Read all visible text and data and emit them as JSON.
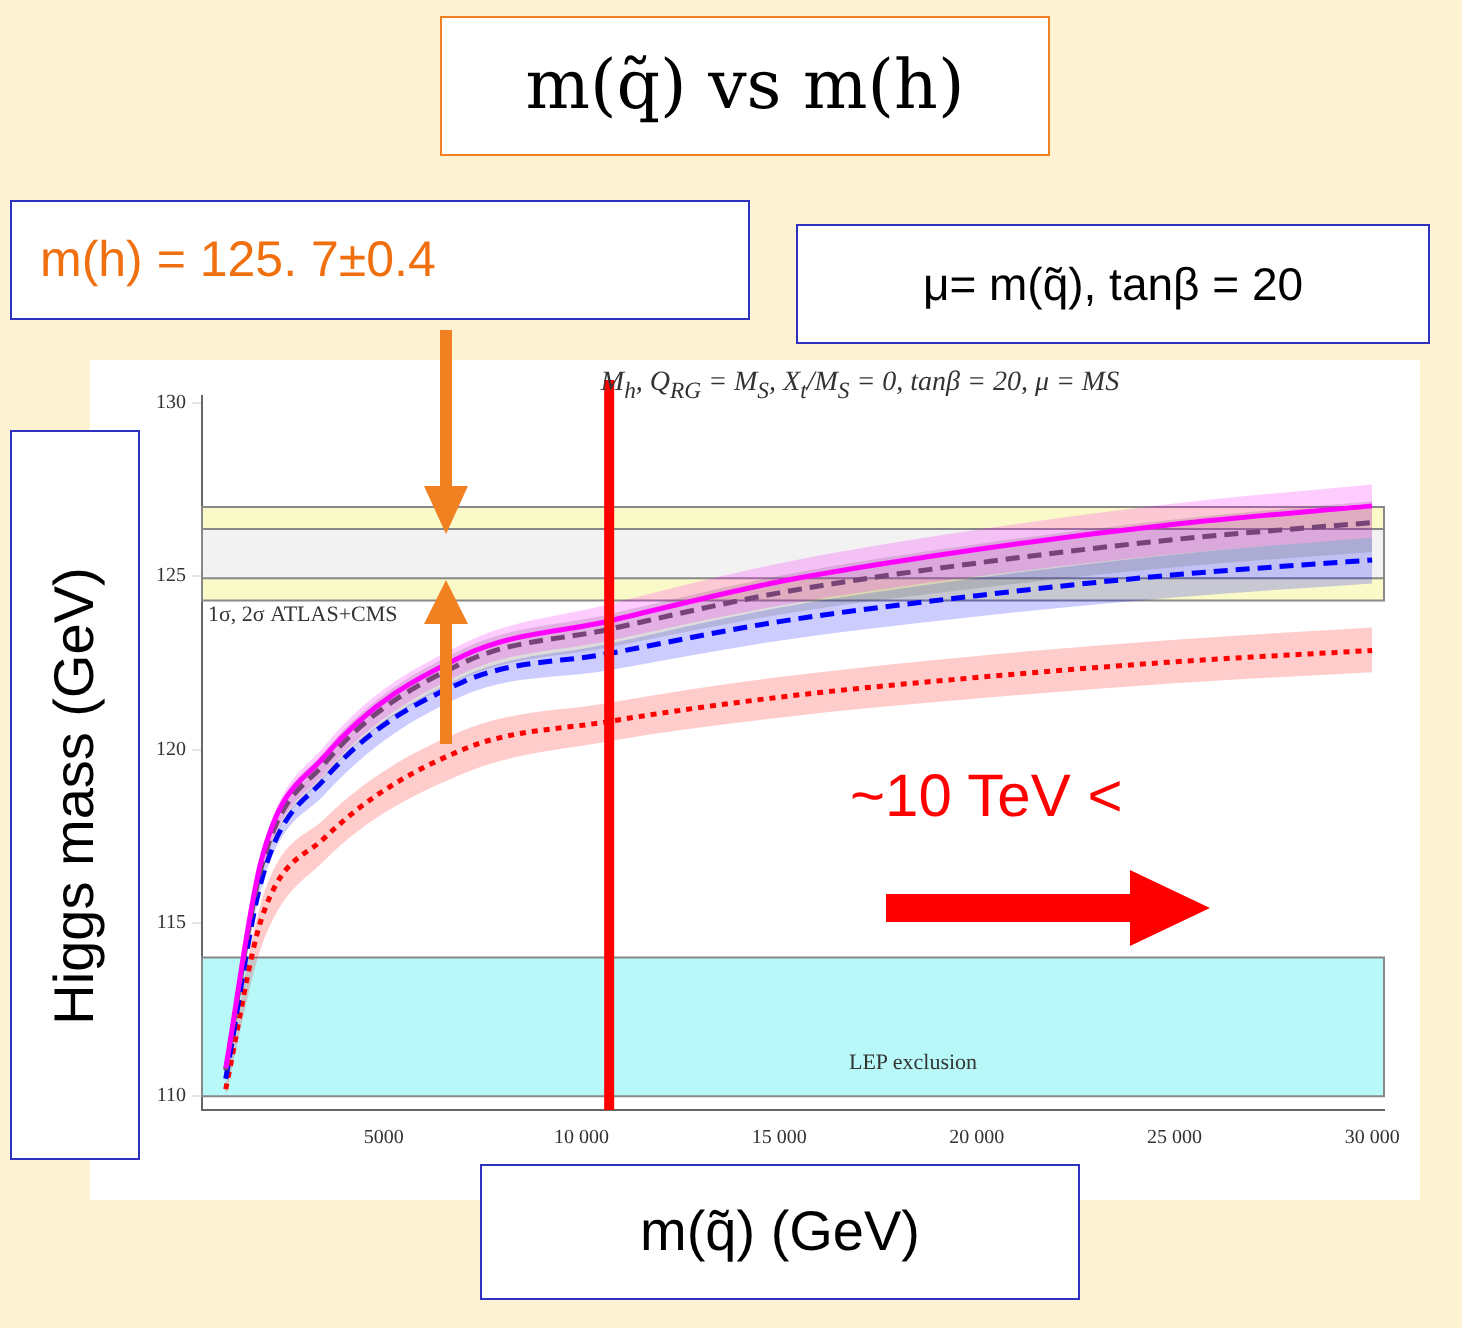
{
  "chart_data": {
    "type": "line",
    "title": "m(q̃) vs m(h)",
    "subtitle": "μ= m(q̃), tanβ = 20",
    "xlabel": "m(q̃) (GeV)",
    "ylabel": "Higgs mass (GeV)",
    "annotations": [
      "M$_{h}$, Q$_{RG}$ = M$_{S}$, X$_{t}$/M$_{S}$ = 0, tanβ = 20, μ = MS",
      "m(h) = 125. 7±0.4",
      "~10 TeV <"
    ],
    "x": [
      1000,
      1900,
      3500,
      7000,
      10700,
      15000,
      20000,
      25000,
      30000
    ],
    "series": [
      {
        "color": "#ff00ff",
        "line_style": "solid",
        "values": [
          110.8,
          116.8,
          119.8,
          122.7,
          123.71,
          124.84,
          125.77,
          126.5,
          127.03
        ],
        "lower": [
          110.7,
          116.4,
          119.3,
          122.2,
          123.14,
          124.15,
          124.99,
          125.64,
          126.12
        ],
        "upper": [
          110.9,
          117,
          120.1,
          123.05,
          124.19,
          125.37,
          126.34,
          127.1,
          127.65
        ]
      },
      {
        "color": "#555555",
        "line_style": "dashed",
        "values": [
          110.75,
          116.6,
          119.6,
          122.5,
          123.47,
          124.52,
          125.38,
          126.06,
          126.55
        ],
        "lower": [
          110.6,
          116.3,
          119.2,
          122.05,
          122.95,
          123.89,
          124.65,
          125.26,
          125.7
        ],
        "upper": [
          110.85,
          116.9,
          119.95,
          122.9,
          123.9,
          125.01,
          125.92,
          126.64,
          127.16
        ]
      },
      {
        "color": "#0000ff",
        "line_style": "dashed",
        "values": [
          110.5,
          116.2,
          119.15,
          121.95,
          122.77,
          123.69,
          124.44,
          125.04,
          125.47
        ],
        "lower": [
          110.4,
          116,
          118.7,
          121.55,
          122.29,
          123.14,
          123.84,
          124.39,
          124.79
        ],
        "upper": [
          110.65,
          116.35,
          119.25,
          122.1,
          123.05,
          124.09,
          124.95,
          125.63,
          126.12
        ]
      },
      {
        "color": "#ff0000",
        "line_style": "dotted",
        "values": [
          110.2,
          115.1,
          117.45,
          120,
          120.81,
          121.51,
          122.08,
          122.53,
          122.86
        ],
        "lower": [
          110,
          114.3,
          116.8,
          119.3,
          120.24,
          120.92,
          121.47,
          121.91,
          122.23
        ],
        "upper": [
          110.35,
          115.6,
          118,
          120.55,
          121.35,
          122.09,
          122.7,
          123.17,
          123.52
        ]
      }
    ],
    "xlim": [
      400,
      30300
    ],
    "ylim": [
      109.6,
      130.2
    ],
    "xticks": [
      5000,
      {
        "value": 10000,
        "label": "10 000"
      },
      {
        "value": 15000,
        "label": "15 000"
      },
      {
        "value": 20000,
        "label": "20 000"
      },
      {
        "value": 25000,
        "label": "25 000"
      },
      {
        "value": 30000,
        "label": "30 000"
      }
    ],
    "yticks": [
      110,
      115,
      120,
      125,
      130
    ],
    "bands": [
      {
        "axis": "y",
        "from": 124.3,
        "to": 127,
        "label": "1σ, 2σ ATLAS+CMS",
        "color": "#fafac8"
      },
      {
        "axis": "y",
        "from": 124.94,
        "to": 126.36,
        "color": "#f2f2f2"
      },
      {
        "axis": "y",
        "from": 110,
        "to": 114,
        "label": "LEP exclusion",
        "color": "#b8f8f8"
      }
    ],
    "ref_lines": [
      {
        "axis": "x",
        "value": 10700,
        "color": "#ff0000"
      }
    ]
  }
}
